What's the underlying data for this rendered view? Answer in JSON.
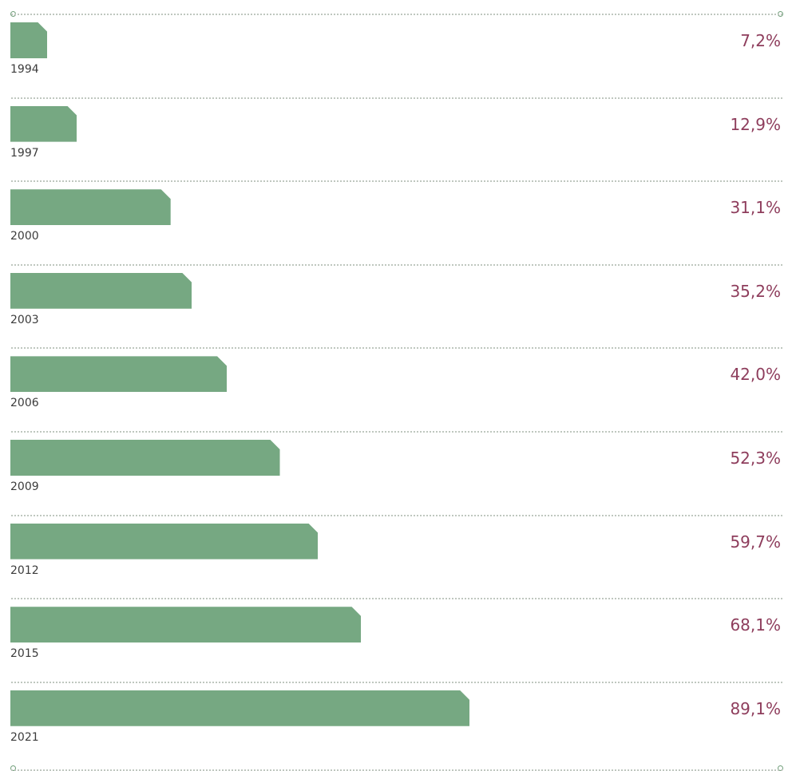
{
  "chart_data": {
    "type": "bar",
    "orientation": "horizontal",
    "categories": [
      "1994",
      "1997",
      "2000",
      "2003",
      "2006",
      "2009",
      "2012",
      "2015",
      "2021"
    ],
    "values": [
      7.2,
      12.9,
      31.1,
      35.2,
      42.0,
      52.3,
      59.7,
      68.1,
      89.1
    ],
    "value_labels": [
      "7,2%",
      "12,9%",
      "31,1%",
      "35,2%",
      "42,0%",
      "52,3%",
      "59,7%",
      "68,1%",
      "89,1%"
    ],
    "unit": "%",
    "xlim": [
      0,
      100
    ],
    "grid": false,
    "legend": "none"
  },
  "colors": {
    "bar": "#76a882",
    "value_label": "#8e3d5c",
    "year_label": "#3b3b3b",
    "separator": "#bfc7bf",
    "endcap": "#6f9e79"
  }
}
